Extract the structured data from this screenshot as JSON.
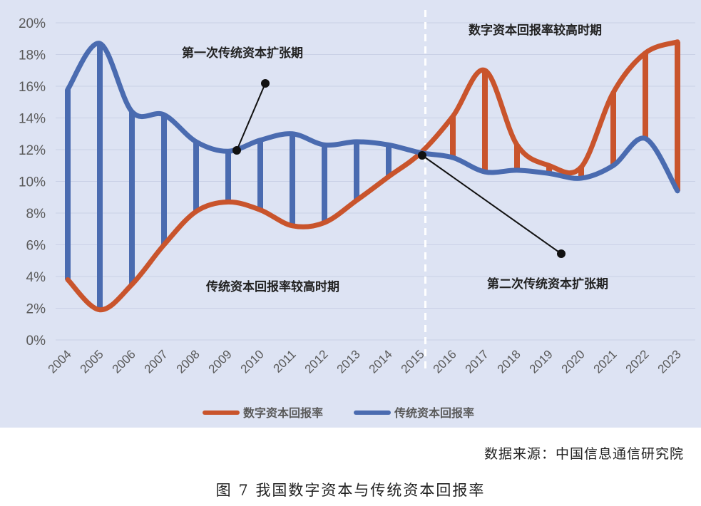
{
  "chart_data": {
    "type": "line",
    "x": [
      "2004",
      "2005",
      "2006",
      "2007",
      "2008",
      "2009",
      "2010",
      "2011",
      "2012",
      "2013",
      "2014",
      "2015",
      "2016",
      "2017",
      "2018",
      "2019",
      "2020",
      "2021",
      "2022",
      "2023"
    ],
    "series": [
      {
        "name": "数字资本回报率",
        "color": "#c9542c",
        "values": [
          3.8,
          1.9,
          3.5,
          6.0,
          8.1,
          8.7,
          8.2,
          7.2,
          7.4,
          8.8,
          10.3,
          11.8,
          14.1,
          17.0,
          12.3,
          11.0,
          10.9,
          15.6,
          18.1,
          18.8
        ]
      },
      {
        "name": "传统资本回报率",
        "color": "#4a6bb0",
        "values": [
          15.8,
          18.7,
          14.4,
          14.2,
          12.5,
          11.9,
          12.6,
          13.0,
          12.3,
          12.5,
          12.3,
          11.8,
          11.5,
          10.6,
          10.7,
          10.5,
          10.2,
          11.0,
          12.7,
          9.4
        ]
      }
    ],
    "y_ticks": [
      "0%",
      "2%",
      "4%",
      "6%",
      "8%",
      "10%",
      "12%",
      "14%",
      "16%",
      "18%",
      "20%"
    ],
    "ylim": [
      0,
      20
    ],
    "divider_after": "2015",
    "legend_position": "bottom",
    "annotations": {
      "first_expansion": "第一次传统资本扩张期",
      "second_expansion": "第二次传统资本扩张期",
      "digital_high": "数字资本回报率较高时期",
      "traditional_high": "传统资本回报率较高时期"
    },
    "source": "数据来源：中国信息通信研究院",
    "caption": "图 7  我国数字资本与传统资本回报率"
  }
}
